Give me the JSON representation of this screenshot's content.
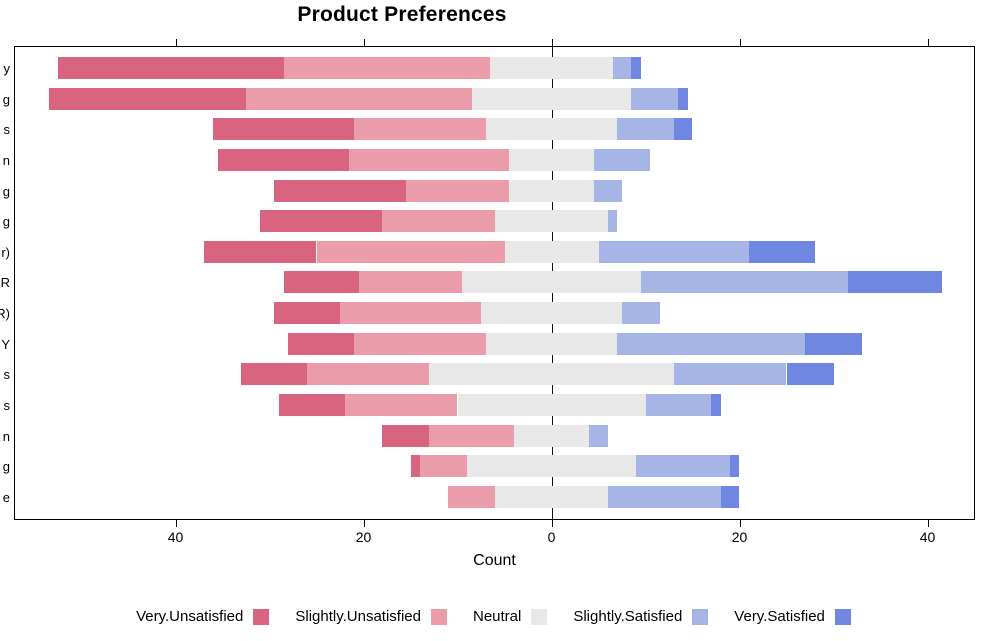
{
  "chart_data": {
    "type": "bar",
    "variant": "diverging-stacked-likert",
    "title": "Product Preferences",
    "xlabel": "Count",
    "x_tick_labels": [
      "40",
      "20",
      "0",
      "20",
      "40"
    ],
    "x_tick_values": [
      -40,
      -20,
      0,
      20,
      40
    ],
    "xlim": [
      -57,
      45.5
    ],
    "grid": "off",
    "zero_reference_line": true,
    "legend_position": "bottom",
    "legend": [
      "Very.Unsatisfied",
      "Slightly.Unsatisfied",
      "Neutral",
      "Slightly.Satisfied",
      "Very.Satisfied"
    ],
    "categories": [
      "y",
      "g",
      "s",
      "n",
      "g",
      "g",
      "r)",
      "R",
      "R)",
      "Y",
      "s",
      "s",
      "n",
      "g",
      "e"
    ],
    "colors": {
      "Very.Unsatisfied": "#d8647f",
      "Slightly.Unsatisfied": "#ea9cab",
      "Neutral": "#e8e8e8",
      "Slightly.Satisfied": "#a7b5e6",
      "Very.Satisfied": "#6f87e0"
    },
    "series": [
      {
        "name": "Very.Unsatisfied",
        "color": "#d8647f",
        "values": [
          24,
          21,
          15,
          14,
          14,
          13,
          12,
          8,
          7,
          7,
          7,
          7,
          5,
          1,
          0
        ]
      },
      {
        "name": "Slightly.Unsatisfied",
        "color": "#ea9cab",
        "values": [
          22,
          24,
          14,
          17,
          11,
          12,
          20,
          11,
          15,
          14,
          13,
          12,
          9,
          5,
          5
        ]
      },
      {
        "name": "Neutral",
        "color": "#e8e8e8",
        "values": [
          13,
          17,
          14,
          9,
          9,
          12,
          10,
          19,
          15,
          14,
          26,
          20,
          8,
          18,
          12
        ]
      },
      {
        "name": "Slightly.Satisfied",
        "color": "#a7b5e6",
        "values": [
          2,
          5,
          6,
          6,
          3,
          1,
          16,
          22,
          4,
          20,
          12,
          7,
          2,
          10,
          12
        ]
      },
      {
        "name": "Very.Satisfied",
        "color": "#6f87e0",
        "values": [
          1,
          1,
          2,
          0,
          0,
          0,
          7,
          10,
          0,
          6,
          5,
          1,
          0,
          1,
          2
        ]
      }
    ],
    "baseline_rule": "Neutral segment centered on zero; left = Very.Unsatisfied + Slightly.Unsatisfied + Neutral/2"
  }
}
